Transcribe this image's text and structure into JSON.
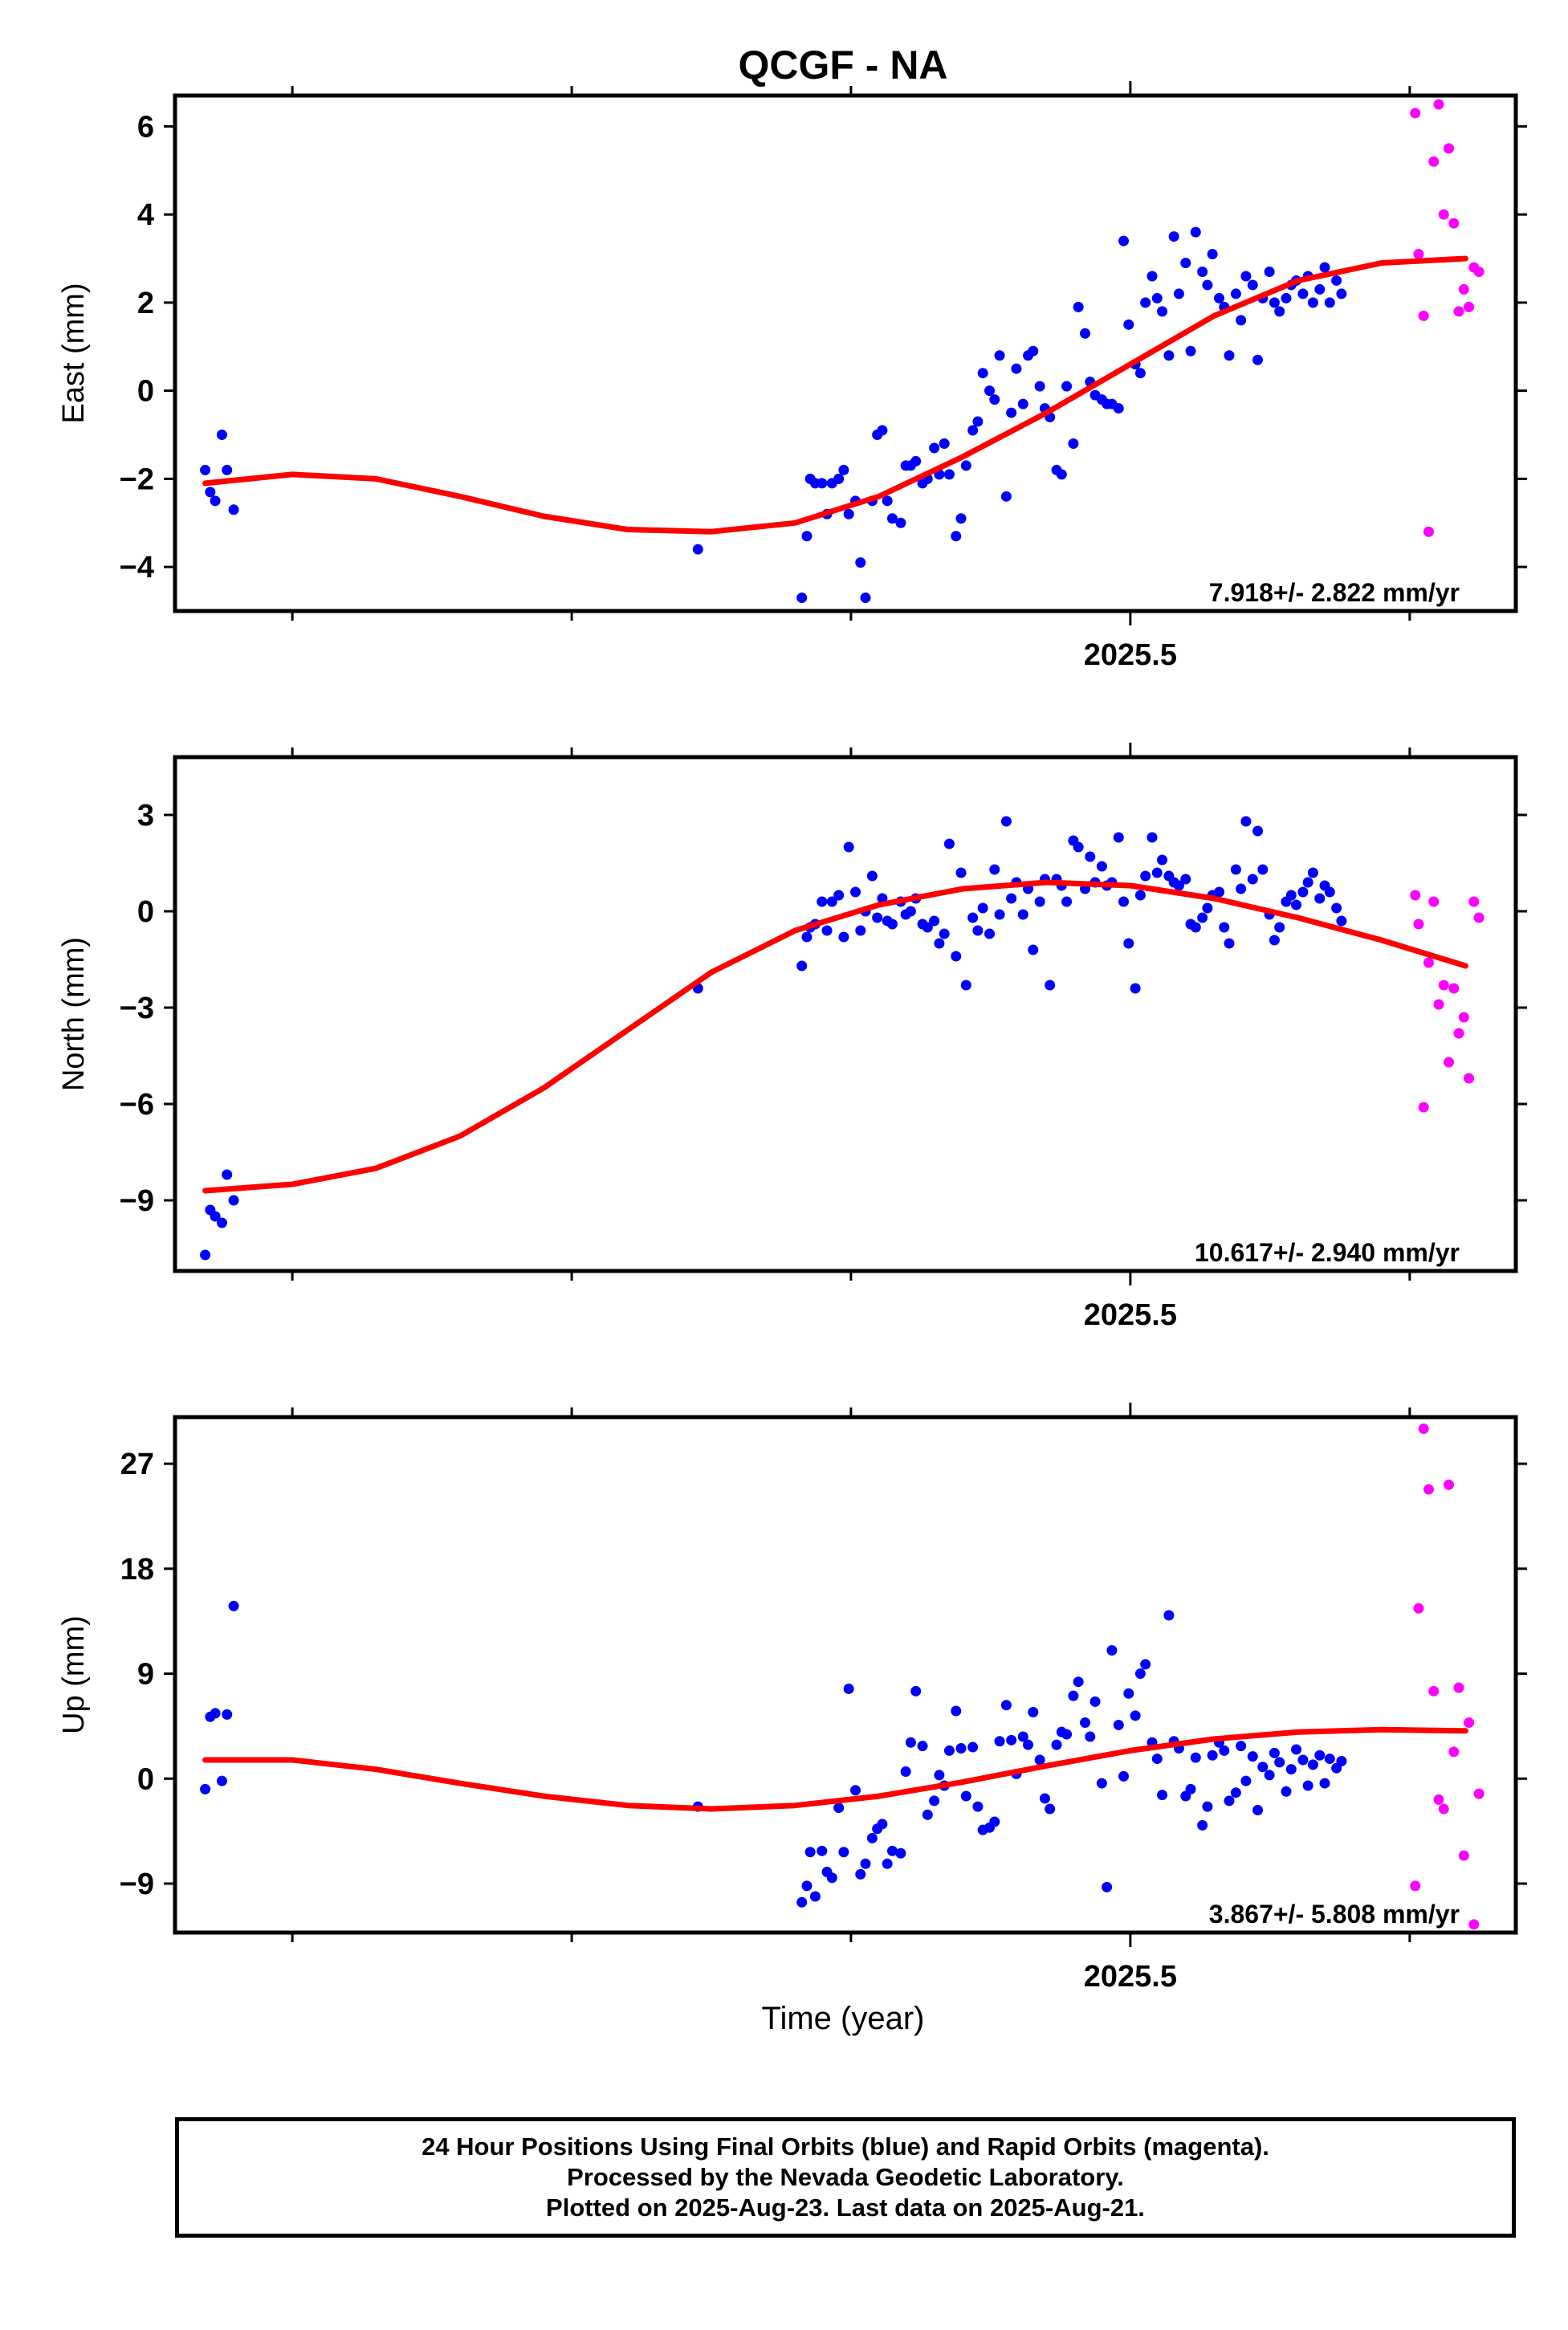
{
  "title": "QCGF - NA",
  "xlabel": "Time (year)",
  "colors": {
    "final": "#0000ff",
    "rapid": "#ff00ff",
    "fit": "#ff0000",
    "frame": "#000000"
  },
  "caption": [
    "24 Hour Positions Using Final Orbits (blue) and Rapid Orbits (magenta).",
    "Processed by the Nevada Geodetic Laboratory.",
    "Plotted on 2025-Aug-23. Last data on 2025-Aug-21."
  ],
  "chart_data": [
    {
      "type": "scatter",
      "ylabel": "East (mm)",
      "rate_label": "7.918+/- 2.822 mm/yr",
      "xlim": [
        2024.93,
        2025.73
      ],
      "ylim": [
        -5.0,
        6.7
      ],
      "yticks": [
        -4,
        -2,
        0,
        2,
        4,
        6
      ],
      "ytick_labels": [
        "−4",
        "−2",
        "0",
        "2",
        "4",
        "6"
      ],
      "xticks_major": [
        2025.5
      ],
      "xtick_labels": [
        "2025.5"
      ],
      "xticks_minor": [
        2025.0,
        2025.1667,
        2025.3333,
        2025.6667
      ],
      "series": [
        {
          "color_key": "final",
          "x": [
            2024.948,
            2024.951,
            2024.954,
            2024.958,
            2024.961,
            2024.965,
            2025.242,
            2025.304,
            2025.307,
            2025.309,
            2025.312,
            2025.316,
            2025.319,
            2025.322,
            2025.326,
            2025.329,
            2025.332,
            2025.336,
            2025.339,
            2025.342,
            2025.346,
            2025.349,
            2025.352,
            2025.355,
            2025.358,
            2025.363,
            2025.366,
            2025.369,
            2025.372,
            2025.376,
            2025.379,
            2025.383,
            2025.386,
            2025.389,
            2025.392,
            2025.396,
            2025.399,
            2025.402,
            2025.406,
            2025.409,
            2025.412,
            2025.416,
            2025.419,
            2025.422,
            2025.426,
            2025.429,
            2025.432,
            2025.436,
            2025.439,
            2025.442,
            2025.446,
            2025.449,
            2025.452,
            2025.456,
            2025.459,
            2025.462,
            2025.466,
            2025.469,
            2025.473,
            2025.476,
            2025.479,
            2025.483,
            2025.486,
            2025.489,
            2025.493,
            2025.496,
            2025.499,
            2025.503,
            2025.506,
            2025.509,
            2025.513,
            2025.516,
            2025.519,
            2025.523,
            2025.526,
            2025.529,
            2025.533,
            2025.536,
            2025.539,
            2025.543,
            2025.546,
            2025.549,
            2025.553,
            2025.556,
            2025.559,
            2025.563,
            2025.566,
            2025.569,
            2025.573,
            2025.576,
            2025.579,
            2025.583,
            2025.586,
            2025.589,
            2025.593,
            2025.596,
            2025.599,
            2025.603,
            2025.606,
            2025.609,
            2025.613,
            2025.616,
            2025.619,
            2025.623,
            2025.626
          ],
          "y": [
            -1.8,
            -2.3,
            -2.5,
            -1.0,
            -1.8,
            -2.7,
            -3.6,
            -4.7,
            -3.3,
            -2.0,
            -2.1,
            -2.1,
            -2.8,
            -2.1,
            -2.0,
            -1.8,
            -2.8,
            -2.5,
            -3.9,
            -4.7,
            -2.5,
            -1.0,
            -0.9,
            -2.5,
            -2.9,
            -3.0,
            -1.7,
            -1.7,
            -1.6,
            -2.1,
            -2.0,
            -1.3,
            -1.9,
            -1.2,
            -1.9,
            -3.3,
            -2.9,
            -1.7,
            -0.9,
            -0.7,
            0.4,
            0.0,
            -0.2,
            0.8,
            -2.4,
            -0.5,
            0.5,
            -0.3,
            0.8,
            0.9,
            0.1,
            -0.4,
            -0.6,
            -1.8,
            -1.9,
            0.1,
            -1.2,
            1.9,
            1.3,
            0.2,
            -0.1,
            -0.2,
            -0.3,
            -0.3,
            -0.4,
            3.4,
            1.5,
            0.6,
            0.4,
            2.0,
            2.6,
            2.1,
            1.8,
            0.8,
            3.5,
            2.2,
            2.9,
            0.9,
            3.6,
            2.7,
            2.4,
            3.1,
            2.1,
            1.9,
            0.8,
            2.2,
            1.6,
            2.6,
            2.4,
            0.7,
            2.1,
            2.7,
            2.0,
            1.8,
            2.1,
            2.4,
            2.5,
            2.2,
            2.6,
            2.0,
            2.3,
            2.8,
            2.0,
            2.5,
            2.2
          ]
        },
        {
          "color_key": "rapid",
          "x": [
            2025.67,
            2025.672,
            2025.675,
            2025.678,
            2025.681,
            2025.684,
            2025.687,
            2025.69,
            2025.693,
            2025.696,
            2025.699,
            2025.702,
            2025.705,
            2025.708
          ],
          "y": [
            6.3,
            3.1,
            1.7,
            -3.2,
            5.2,
            6.5,
            4.0,
            5.5,
            3.8,
            1.8,
            2.3,
            1.9,
            2.8,
            2.7
          ]
        }
      ],
      "fit": {
        "color_key": "fit",
        "x": [
          2024.948,
          2025.0,
          2025.05,
          2025.1,
          2025.15,
          2025.2,
          2025.25,
          2025.3,
          2025.35,
          2025.4,
          2025.45,
          2025.5,
          2025.55,
          2025.6,
          2025.65,
          2025.7
        ],
        "y": [
          -2.1,
          -1.9,
          -2.0,
          -2.4,
          -2.85,
          -3.15,
          -3.2,
          -3.0,
          -2.4,
          -1.5,
          -0.5,
          0.6,
          1.7,
          2.5,
          2.9,
          3.0
        ]
      }
    },
    {
      "type": "scatter",
      "ylabel": "North (mm)",
      "rate_label": "10.617+/- 2.940 mm/yr",
      "xlim": [
        2024.93,
        2025.73
      ],
      "ylim": [
        -11.2,
        4.8
      ],
      "yticks": [
        -9,
        -6,
        -3,
        0,
        3
      ],
      "ytick_labels": [
        "−9",
        "−6",
        "−3",
        "0",
        "3"
      ],
      "xticks_major": [
        2025.5
      ],
      "xtick_labels": [
        "2025.5"
      ],
      "xticks_minor": [
        2025.0,
        2025.1667,
        2025.3333,
        2025.6667
      ],
      "series": [
        {
          "color_key": "final",
          "x": [
            2024.948,
            2024.951,
            2024.954,
            2024.958,
            2024.961,
            2024.965,
            2025.242,
            2025.304,
            2025.307,
            2025.309,
            2025.312,
            2025.316,
            2025.319,
            2025.322,
            2025.326,
            2025.329,
            2025.332,
            2025.336,
            2025.339,
            2025.342,
            2025.346,
            2025.349,
            2025.352,
            2025.355,
            2025.358,
            2025.363,
            2025.366,
            2025.369,
            2025.372,
            2025.376,
            2025.379,
            2025.383,
            2025.386,
            2025.389,
            2025.392,
            2025.396,
            2025.399,
            2025.402,
            2025.406,
            2025.409,
            2025.412,
            2025.416,
            2025.419,
            2025.422,
            2025.426,
            2025.429,
            2025.432,
            2025.436,
            2025.439,
            2025.442,
            2025.446,
            2025.449,
            2025.452,
            2025.456,
            2025.459,
            2025.462,
            2025.466,
            2025.469,
            2025.473,
            2025.476,
            2025.479,
            2025.483,
            2025.486,
            2025.489,
            2025.493,
            2025.496,
            2025.499,
            2025.503,
            2025.506,
            2025.509,
            2025.513,
            2025.516,
            2025.519,
            2025.523,
            2025.526,
            2025.529,
            2025.533,
            2025.536,
            2025.539,
            2025.543,
            2025.546,
            2025.549,
            2025.553,
            2025.556,
            2025.559,
            2025.563,
            2025.566,
            2025.569,
            2025.573,
            2025.576,
            2025.579,
            2025.583,
            2025.586,
            2025.589,
            2025.593,
            2025.596,
            2025.599,
            2025.603,
            2025.606,
            2025.609,
            2025.613,
            2025.616,
            2025.619,
            2025.623,
            2025.626
          ],
          "y": [
            -10.7,
            -9.3,
            -9.5,
            -9.7,
            -8.2,
            -9.0,
            -2.4,
            -1.7,
            -0.8,
            -0.5,
            -0.4,
            0.3,
            -0.6,
            0.3,
            0.5,
            -0.8,
            2.0,
            0.6,
            -0.6,
            0.0,
            1.1,
            -0.2,
            0.4,
            -0.3,
            -0.4,
            0.3,
            -0.1,
            0.0,
            0.4,
            -0.4,
            -0.5,
            -0.3,
            -1.0,
            -0.7,
            2.1,
            -1.4,
            1.2,
            -2.3,
            -0.2,
            -0.6,
            0.1,
            -0.7,
            1.3,
            -0.1,
            2.8,
            0.4,
            0.9,
            -0.1,
            0.7,
            -1.2,
            0.3,
            1.0,
            -2.3,
            1.0,
            0.8,
            0.3,
            2.2,
            2.0,
            0.7,
            1.7,
            0.9,
            1.4,
            0.8,
            0.9,
            2.3,
            0.3,
            -1.0,
            -2.4,
            0.5,
            1.1,
            2.3,
            1.2,
            1.6,
            1.1,
            0.9,
            0.8,
            1.0,
            -0.4,
            -0.5,
            -0.2,
            0.1,
            0.5,
            0.6,
            -0.5,
            -1.0,
            1.3,
            0.7,
            2.8,
            1.0,
            2.5,
            1.3,
            -0.1,
            -0.9,
            -0.5,
            0.3,
            0.5,
            0.2,
            0.6,
            0.9,
            1.2,
            0.4,
            0.8,
            0.6,
            0.1,
            -0.3
          ]
        },
        {
          "color_key": "rapid",
          "x": [
            2025.67,
            2025.672,
            2025.675,
            2025.678,
            2025.681,
            2025.684,
            2025.687,
            2025.69,
            2025.693,
            2025.696,
            2025.699,
            2025.702,
            2025.705,
            2025.708
          ],
          "y": [
            0.5,
            -0.4,
            -6.1,
            -1.6,
            0.3,
            -2.9,
            -2.3,
            -4.7,
            -2.4,
            -3.8,
            -3.3,
            -5.2,
            0.3,
            -0.2
          ]
        }
      ],
      "fit": {
        "color_key": "fit",
        "x": [
          2024.948,
          2025.0,
          2025.05,
          2025.1,
          2025.15,
          2025.2,
          2025.25,
          2025.3,
          2025.35,
          2025.4,
          2025.45,
          2025.5,
          2025.55,
          2025.6,
          2025.65,
          2025.7
        ],
        "y": [
          -8.7,
          -8.5,
          -8.0,
          -7.0,
          -5.5,
          -3.7,
          -1.9,
          -0.6,
          0.2,
          0.7,
          0.9,
          0.8,
          0.4,
          -0.2,
          -0.9,
          -1.7
        ]
      }
    },
    {
      "type": "scatter",
      "ylabel": "Up (mm)",
      "rate_label": "3.867+/- 5.808 mm/yr",
      "xlim": [
        2024.93,
        2025.73
      ],
      "ylim": [
        -13.2,
        31.0
      ],
      "yticks": [
        -9,
        0,
        9,
        18,
        27
      ],
      "ytick_labels": [
        "−9",
        "0",
        "9",
        "18",
        "27"
      ],
      "xticks_major": [
        2025.5
      ],
      "xtick_labels": [
        "2025.5"
      ],
      "xticks_minor": [
        2025.0,
        2025.1667,
        2025.3333,
        2025.6667
      ],
      "series": [
        {
          "color_key": "final",
          "x": [
            2024.948,
            2024.951,
            2024.954,
            2024.958,
            2024.961,
            2024.965,
            2025.242,
            2025.304,
            2025.307,
            2025.309,
            2025.312,
            2025.316,
            2025.319,
            2025.322,
            2025.326,
            2025.329,
            2025.332,
            2025.336,
            2025.339,
            2025.342,
            2025.346,
            2025.349,
            2025.352,
            2025.355,
            2025.358,
            2025.363,
            2025.366,
            2025.369,
            2025.372,
            2025.376,
            2025.379,
            2025.383,
            2025.386,
            2025.389,
            2025.392,
            2025.396,
            2025.399,
            2025.402,
            2025.406,
            2025.409,
            2025.412,
            2025.416,
            2025.419,
            2025.422,
            2025.426,
            2025.429,
            2025.432,
            2025.436,
            2025.439,
            2025.442,
            2025.446,
            2025.449,
            2025.452,
            2025.456,
            2025.459,
            2025.462,
            2025.466,
            2025.469,
            2025.473,
            2025.476,
            2025.479,
            2025.483,
            2025.486,
            2025.489,
            2025.493,
            2025.496,
            2025.499,
            2025.503,
            2025.506,
            2025.509,
            2025.513,
            2025.516,
            2025.519,
            2025.523,
            2025.526,
            2025.529,
            2025.533,
            2025.536,
            2025.539,
            2025.543,
            2025.546,
            2025.549,
            2025.553,
            2025.556,
            2025.559,
            2025.563,
            2025.566,
            2025.569,
            2025.573,
            2025.576,
            2025.579,
            2025.583,
            2025.586,
            2025.589,
            2025.593,
            2025.596,
            2025.599,
            2025.603,
            2025.606,
            2025.609,
            2025.613,
            2025.616,
            2025.619,
            2025.623,
            2025.626
          ],
          "y": [
            -0.9,
            5.3,
            5.6,
            -0.2,
            5.5,
            14.8,
            -2.4,
            -10.6,
            -9.2,
            -6.3,
            -10.1,
            -6.2,
            -8.0,
            -8.5,
            -2.5,
            -6.3,
            7.7,
            -1.0,
            -8.2,
            -7.3,
            -5.1,
            -4.3,
            -3.9,
            -7.3,
            -6.2,
            -6.4,
            0.6,
            3.1,
            7.5,
            2.8,
            -3.1,
            -1.9,
            0.3,
            -0.6,
            2.4,
            5.8,
            2.6,
            -1.5,
            2.7,
            -2.4,
            -4.4,
            -4.2,
            -3.7,
            3.2,
            6.3,
            3.3,
            0.4,
            3.6,
            2.9,
            5.7,
            1.6,
            -1.7,
            -2.6,
            2.9,
            4.0,
            3.8,
            7.1,
            8.3,
            4.8,
            3.6,
            6.6,
            -0.4,
            -9.3,
            11.0,
            4.6,
            0.2,
            7.3,
            5.4,
            9.0,
            9.8,
            3.1,
            1.7,
            -1.4,
            14.0,
            3.2,
            2.6,
            -1.5,
            -0.9,
            1.8,
            -4.0,
            -2.4,
            2.0,
            3.1,
            2.4,
            -1.9,
            -1.2,
            2.8,
            -0.2,
            1.9,
            -2.7,
            1.0,
            0.3,
            2.2,
            1.4,
            -1.1,
            0.8,
            2.5,
            1.6,
            -0.6,
            1.2,
            2.0,
            -0.4,
            1.7,
            0.9,
            1.5
          ]
        },
        {
          "color_key": "rapid",
          "x": [
            2025.67,
            2025.672,
            2025.675,
            2025.678,
            2025.681,
            2025.684,
            2025.687,
            2025.69,
            2025.693,
            2025.696,
            2025.699,
            2025.702,
            2025.705,
            2025.708
          ],
          "y": [
            -9.2,
            14.6,
            30.0,
            24.8,
            7.5,
            -1.8,
            -2.6,
            25.2,
            2.3,
            7.8,
            -6.6,
            4.8,
            -12.5,
            -1.3
          ]
        }
      ],
      "fit": {
        "color_key": "fit",
        "x": [
          2024.948,
          2025.0,
          2025.05,
          2025.1,
          2025.15,
          2025.2,
          2025.25,
          2025.3,
          2025.35,
          2025.4,
          2025.45,
          2025.5,
          2025.55,
          2025.6,
          2025.65,
          2025.7
        ],
        "y": [
          1.6,
          1.6,
          0.8,
          -0.4,
          -1.5,
          -2.3,
          -2.6,
          -2.3,
          -1.5,
          -0.3,
          1.1,
          2.4,
          3.4,
          4.0,
          4.2,
          4.1
        ]
      }
    }
  ]
}
